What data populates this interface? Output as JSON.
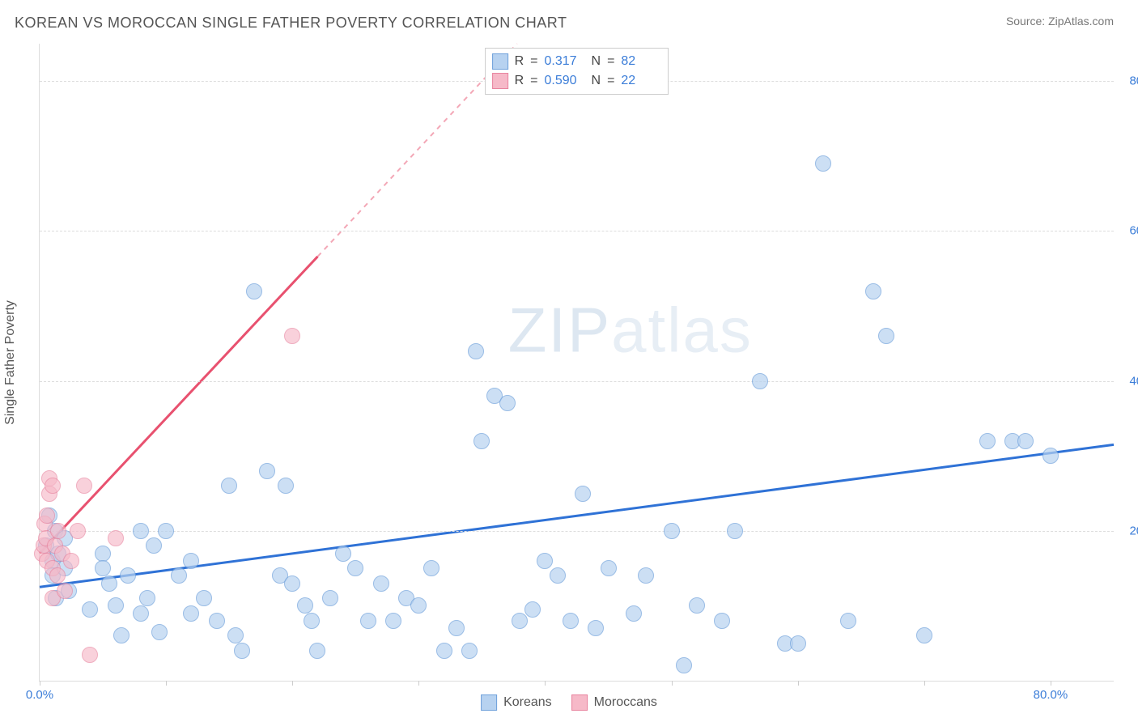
{
  "title": "KOREAN VS MOROCCAN SINGLE FATHER POVERTY CORRELATION CHART",
  "source_label": "Source: ZipAtlas.com",
  "watermark": {
    "part1": "ZIP",
    "part2": "atlas"
  },
  "y_axis_label": "Single Father Poverty",
  "axes": {
    "xlim": [
      0,
      85
    ],
    "ylim": [
      0,
      85
    ],
    "x_ticks": [
      0,
      10,
      20,
      30,
      40,
      50,
      60,
      70,
      80
    ],
    "x_tick_labels": {
      "0": "0.0%",
      "80": "80.0%"
    },
    "y_ticks": [
      20,
      40,
      60,
      80
    ],
    "y_tick_labels": {
      "20": "20.0%",
      "40": "40.0%",
      "60": "60.0%",
      "80": "80.0%"
    }
  },
  "grid": {
    "color": "#dddddd",
    "dash": "4,4"
  },
  "series": [
    {
      "name": "Koreans",
      "fill": "#b7d2f0",
      "stroke": "#6fa1db",
      "marker_radius": 10,
      "fill_opacity": 0.7,
      "trend": {
        "color": "#2f72d6",
        "width": 3,
        "y_at_xmin": 12.5,
        "y_at_xmax": 31.5,
        "solid_until_x": 85
      },
      "stats": {
        "R": "0.317",
        "N": "82"
      },
      "points": [
        [
          0.5,
          18
        ],
        [
          0.8,
          22
        ],
        [
          1,
          16
        ],
        [
          1.2,
          20
        ],
        [
          1,
          14
        ],
        [
          1.3,
          11
        ],
        [
          1.5,
          17
        ],
        [
          2,
          19
        ],
        [
          2,
          15
        ],
        [
          2.3,
          12
        ],
        [
          4,
          9.5
        ],
        [
          5,
          17
        ],
        [
          5,
          15
        ],
        [
          5.5,
          13
        ],
        [
          6,
          10
        ],
        [
          6.5,
          6
        ],
        [
          7,
          14
        ],
        [
          8,
          9
        ],
        [
          8,
          20
        ],
        [
          8.5,
          11
        ],
        [
          9,
          18
        ],
        [
          9.5,
          6.5
        ],
        [
          10,
          20
        ],
        [
          11,
          14
        ],
        [
          12,
          9
        ],
        [
          12,
          16
        ],
        [
          13,
          11
        ],
        [
          14,
          8
        ],
        [
          15,
          26
        ],
        [
          15.5,
          6
        ],
        [
          16,
          4
        ],
        [
          17,
          52
        ],
        [
          18,
          28
        ],
        [
          19,
          14
        ],
        [
          19.5,
          26
        ],
        [
          20,
          13
        ],
        [
          21,
          10
        ],
        [
          21.5,
          8
        ],
        [
          22,
          4
        ],
        [
          23,
          11
        ],
        [
          24,
          17
        ],
        [
          25,
          15
        ],
        [
          26,
          8
        ],
        [
          27,
          13
        ],
        [
          28,
          8
        ],
        [
          29,
          11
        ],
        [
          30,
          10
        ],
        [
          31,
          15
        ],
        [
          32,
          4
        ],
        [
          33,
          7
        ],
        [
          34,
          4
        ],
        [
          34.5,
          44
        ],
        [
          35,
          32
        ],
        [
          36,
          38
        ],
        [
          37,
          37
        ],
        [
          38,
          8
        ],
        [
          39,
          9.5
        ],
        [
          40,
          16
        ],
        [
          41,
          14
        ],
        [
          42,
          8
        ],
        [
          43,
          25
        ],
        [
          44,
          7
        ],
        [
          45,
          15
        ],
        [
          47,
          9
        ],
        [
          48,
          14
        ],
        [
          50,
          20
        ],
        [
          51,
          2
        ],
        [
          52,
          10
        ],
        [
          54,
          8
        ],
        [
          55,
          20
        ],
        [
          57,
          40
        ],
        [
          59,
          5
        ],
        [
          60,
          5
        ],
        [
          62,
          69
        ],
        [
          64,
          8
        ],
        [
          66,
          52
        ],
        [
          67,
          46
        ],
        [
          70,
          6
        ],
        [
          75,
          32
        ],
        [
          77,
          32
        ],
        [
          78,
          32
        ],
        [
          80,
          30
        ]
      ]
    },
    {
      "name": "Moroccans",
      "fill": "#f6b9c8",
      "stroke": "#e8849f",
      "marker_radius": 10,
      "fill_opacity": 0.65,
      "trend": {
        "color": "#e8516f",
        "width": 3,
        "y_at_xmin": 17,
        "y_at_xmax": 170,
        "solid_until_x": 22
      },
      "stats": {
        "R": "0.590",
        "N": "22"
      },
      "points": [
        [
          0.2,
          17
        ],
        [
          0.3,
          18
        ],
        [
          0.4,
          21
        ],
        [
          0.5,
          19
        ],
        [
          0.6,
          16
        ],
        [
          0.6,
          22
        ],
        [
          0.8,
          27
        ],
        [
          0.8,
          25
        ],
        [
          1,
          26
        ],
        [
          1,
          15
        ],
        [
          1,
          11
        ],
        [
          1.2,
          18
        ],
        [
          1.4,
          14
        ],
        [
          1.5,
          20
        ],
        [
          1.8,
          17
        ],
        [
          2,
          12
        ],
        [
          2.5,
          16
        ],
        [
          3,
          20
        ],
        [
          3.5,
          26
        ],
        [
          4,
          3.5
        ],
        [
          6,
          19
        ],
        [
          20,
          46
        ]
      ]
    }
  ],
  "legend": {
    "label1": "Koreans",
    "label2": "Moroccans"
  },
  "stats_box": {
    "r_label": "R",
    "eq": "=",
    "n_label": "N"
  }
}
